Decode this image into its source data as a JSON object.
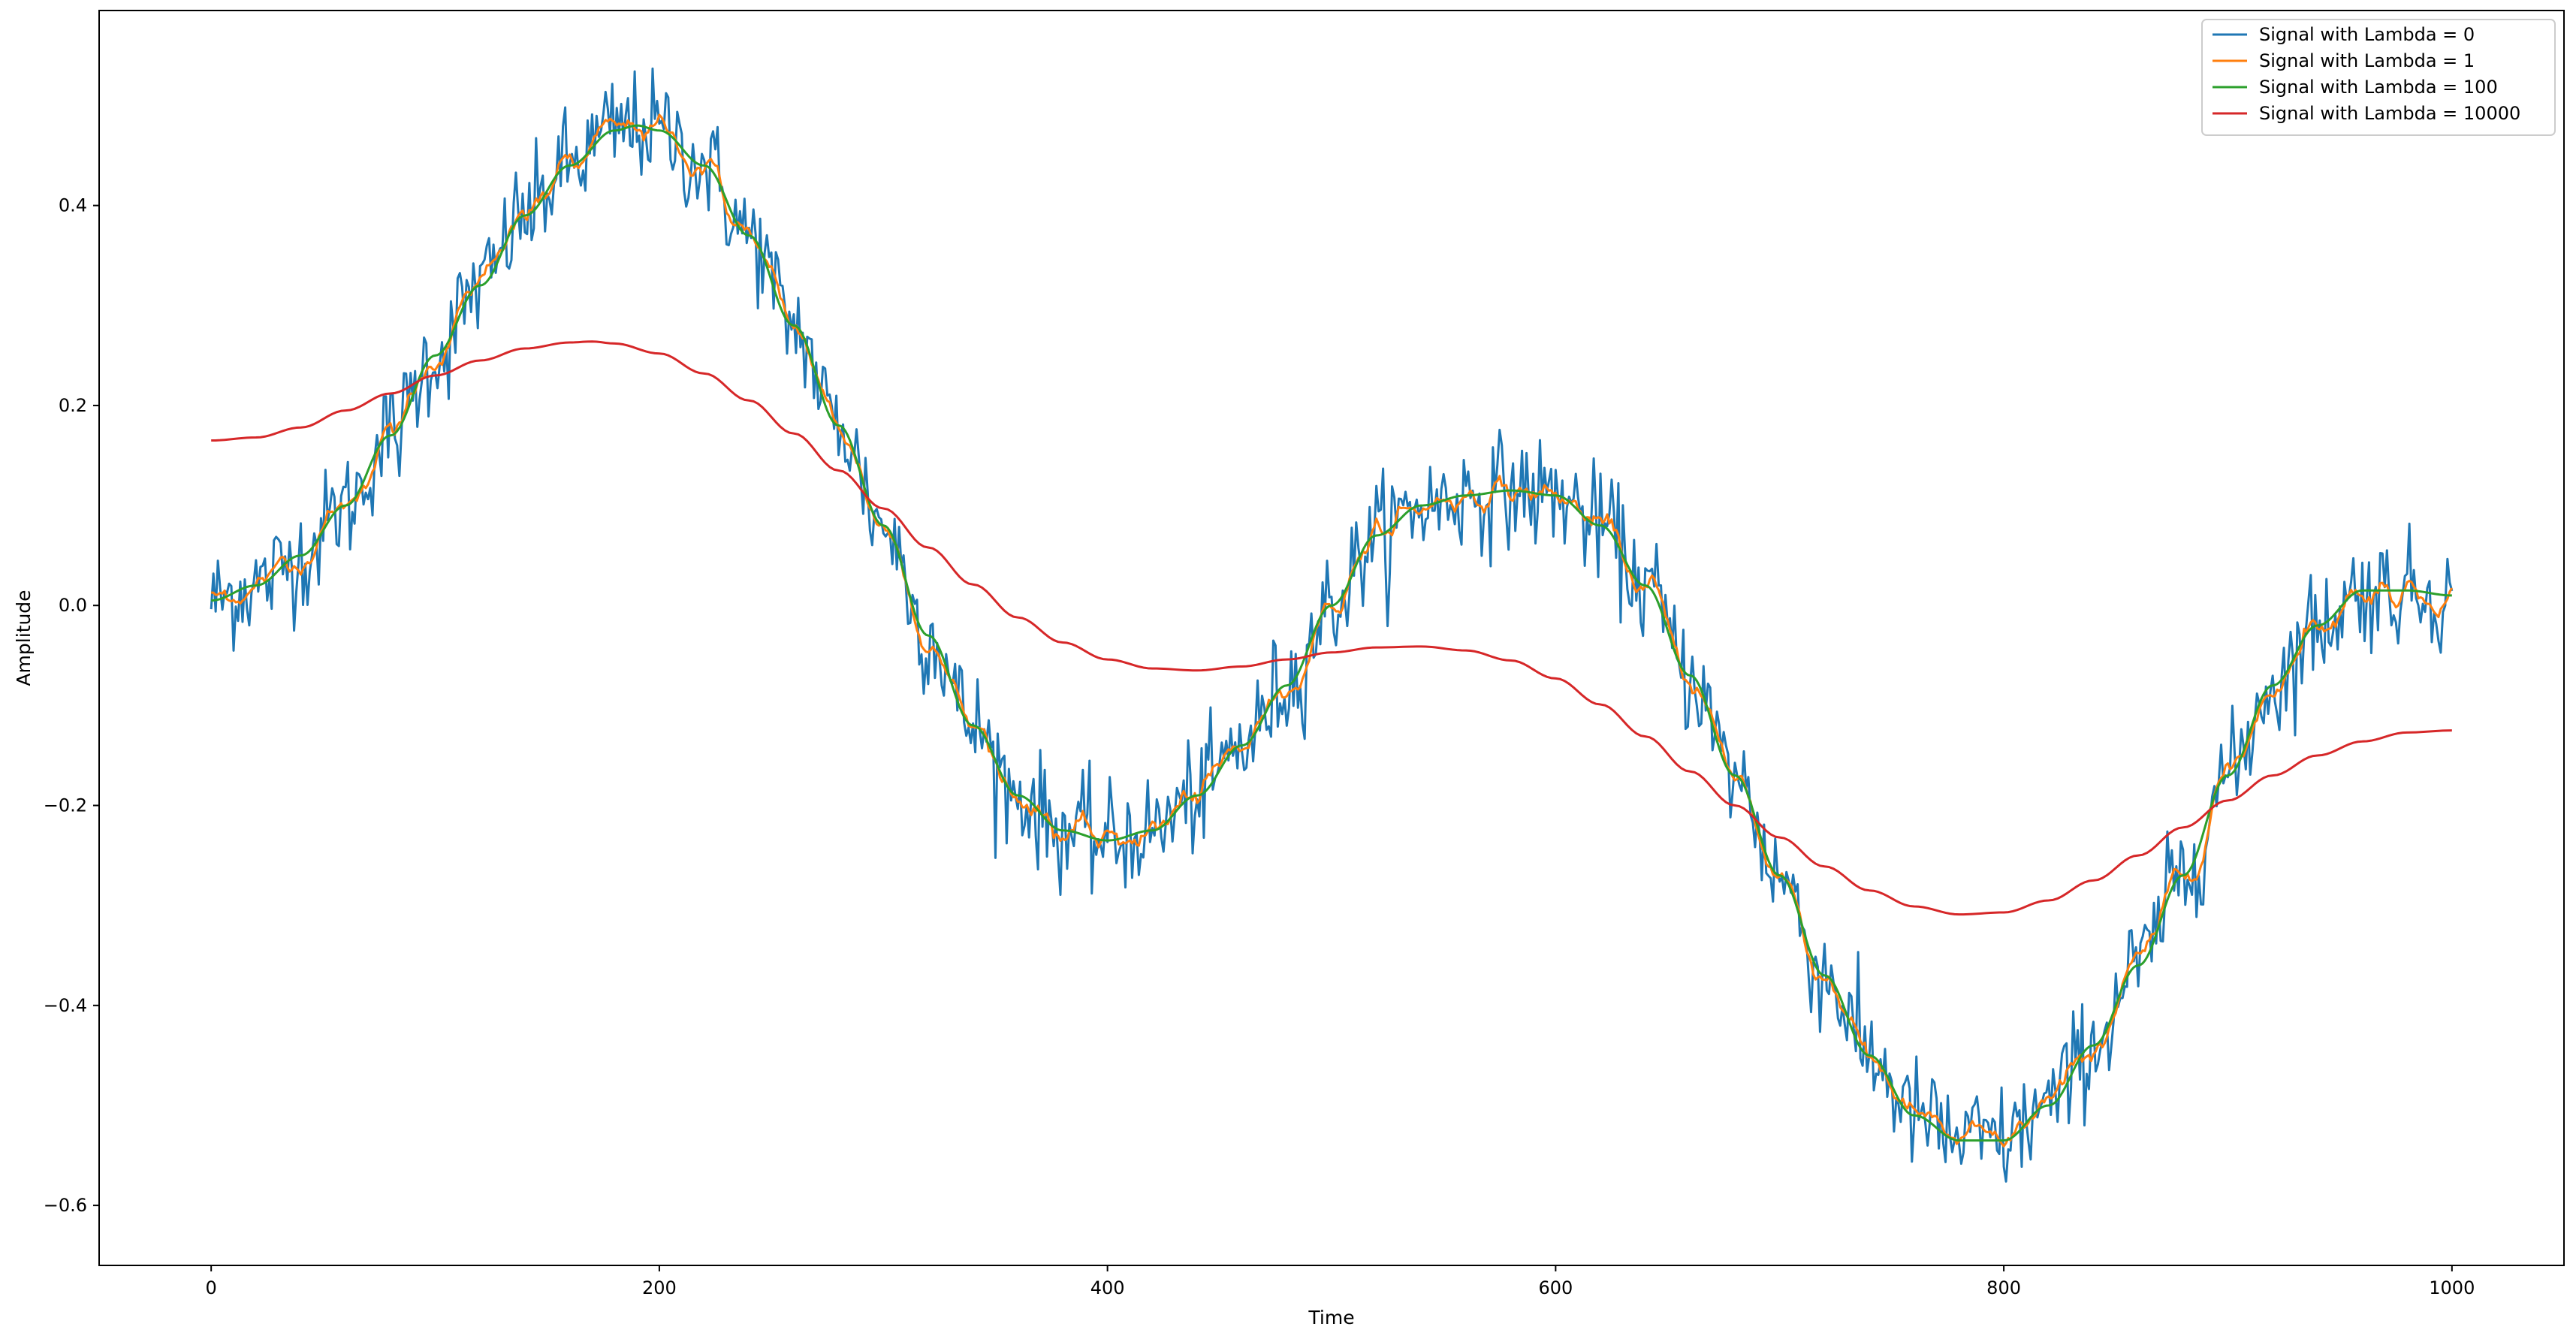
{
  "chart_data": {
    "type": "line",
    "title": "",
    "xlabel": "Time",
    "ylabel": "Amplitude",
    "xlim": [
      -50,
      1050
    ],
    "ylim": [
      -0.66,
      0.595
    ],
    "x_ticks": [
      0,
      200,
      400,
      600,
      800,
      1000
    ],
    "y_ticks": [
      -0.6,
      -0.4,
      -0.2,
      0.0,
      0.2,
      0.4
    ],
    "x_tick_labels": [
      "0",
      "200",
      "400",
      "600",
      "800",
      "1000"
    ],
    "y_tick_labels": [
      "−0.6",
      "−0.4",
      "−0.2",
      "0.0",
      "0.2",
      "0.4"
    ],
    "grid": false,
    "legend_position": "top-right",
    "x_range": [
      0,
      1000
    ],
    "smooth_curve": {
      "x": [
        0,
        20,
        40,
        60,
        80,
        100,
        120,
        140,
        160,
        180,
        190,
        200,
        220,
        240,
        260,
        280,
        300,
        320,
        340,
        360,
        380,
        400,
        420,
        440,
        460,
        480,
        500,
        520,
        540,
        560,
        580,
        600,
        620,
        640,
        660,
        680,
        700,
        720,
        740,
        760,
        780,
        800,
        820,
        840,
        860,
        880,
        900,
        920,
        940,
        960,
        980,
        1000
      ],
      "y": [
        0.005,
        0.02,
        0.05,
        0.1,
        0.17,
        0.25,
        0.32,
        0.39,
        0.44,
        0.475,
        0.48,
        0.475,
        0.44,
        0.37,
        0.28,
        0.18,
        0.08,
        -0.03,
        -0.12,
        -0.19,
        -0.225,
        -0.235,
        -0.225,
        -0.19,
        -0.14,
        -0.08,
        0.0,
        0.07,
        0.1,
        0.11,
        0.115,
        0.11,
        0.08,
        0.02,
        -0.07,
        -0.17,
        -0.27,
        -0.37,
        -0.45,
        -0.51,
        -0.535,
        -0.535,
        -0.5,
        -0.44,
        -0.36,
        -0.27,
        -0.17,
        -0.08,
        -0.02,
        0.015,
        0.015,
        0.01
      ]
    },
    "series": [
      {
        "name": "Signal with Lambda = 0",
        "color": "#1f77b4",
        "noise": 0.028
      },
      {
        "name": "Signal with Lambda = 1",
        "color": "#ff7f0e",
        "noise": 0.012
      },
      {
        "name": "Signal with Lambda = 100",
        "color": "#2ca02c",
        "noise": 0.0
      },
      {
        "name": "Signal with Lambda = 10000",
        "color": "#d62728",
        "x": [
          0,
          20,
          40,
          60,
          80,
          100,
          120,
          140,
          160,
          170,
          180,
          200,
          220,
          240,
          260,
          280,
          300,
          320,
          340,
          360,
          380,
          400,
          420,
          440,
          460,
          480,
          500,
          520,
          540,
          560,
          580,
          600,
          620,
          640,
          660,
          680,
          700,
          720,
          740,
          760,
          780,
          800,
          820,
          840,
          860,
          880,
          900,
          920,
          940,
          960,
          980,
          1000
        ],
        "y": [
          0.165,
          0.168,
          0.178,
          0.195,
          0.212,
          0.23,
          0.245,
          0.257,
          0.263,
          0.264,
          0.262,
          0.252,
          0.232,
          0.205,
          0.172,
          0.135,
          0.097,
          0.058,
          0.021,
          -0.012,
          -0.037,
          -0.054,
          -0.063,
          -0.065,
          -0.061,
          -0.054,
          -0.047,
          -0.042,
          -0.041,
          -0.045,
          -0.055,
          -0.073,
          -0.099,
          -0.131,
          -0.166,
          -0.2,
          -0.232,
          -0.261,
          -0.285,
          -0.301,
          -0.309,
          -0.307,
          -0.295,
          -0.275,
          -0.25,
          -0.222,
          -0.195,
          -0.17,
          -0.15,
          -0.136,
          -0.127,
          -0.125
        ]
      }
    ]
  }
}
